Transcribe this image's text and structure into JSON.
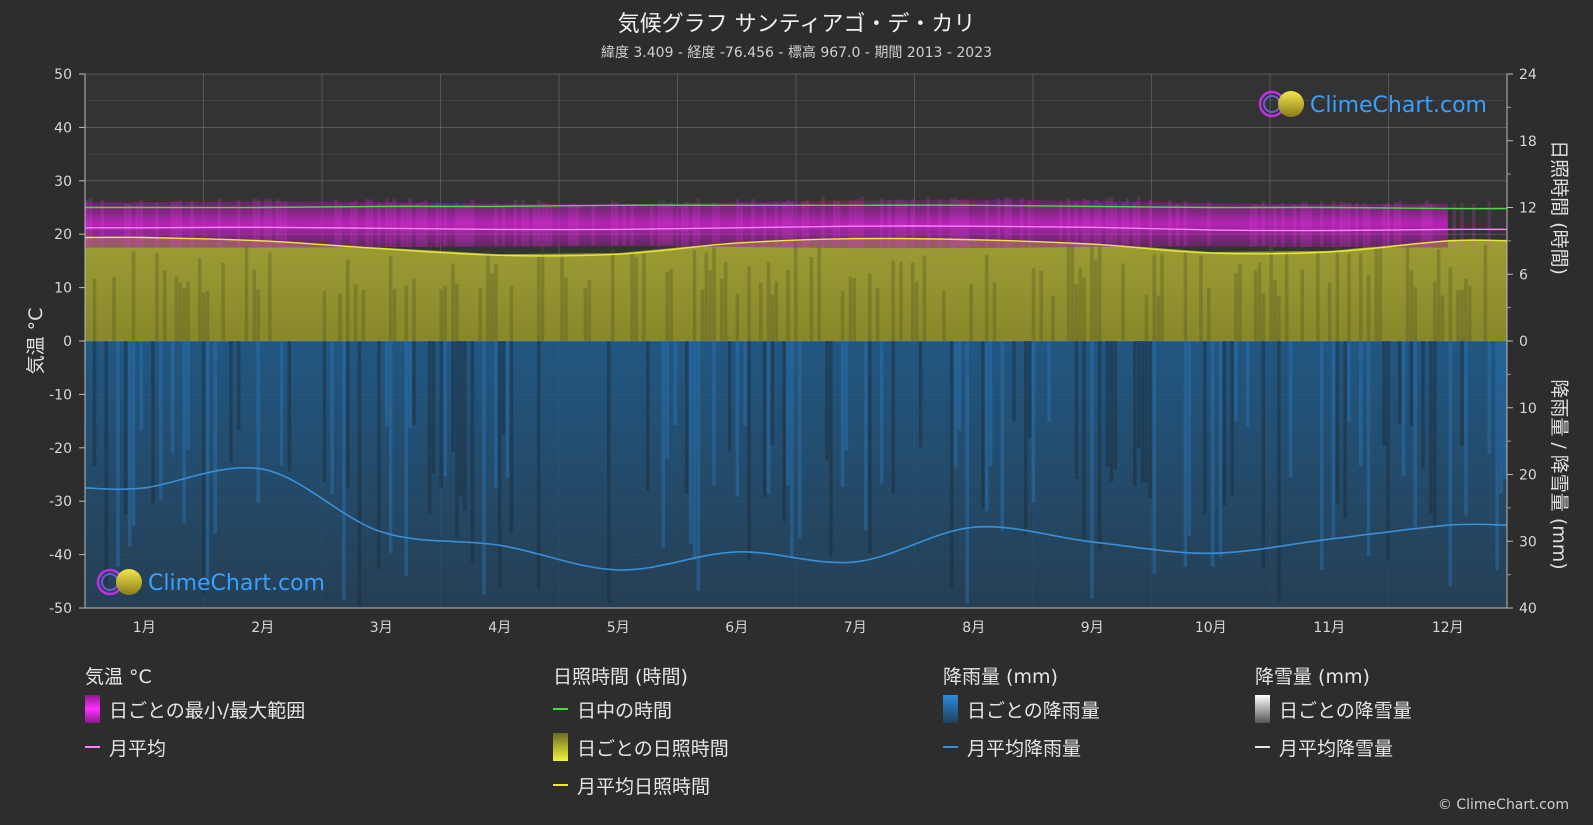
{
  "header": {
    "title": "気候グラフ サンティアゴ・デ・カリ",
    "subtitle": "緯度 3.409 - 経度 -76.456 - 標高 967.0 - 期間 2013 - 2023"
  },
  "watermark": "ClimeChart.com",
  "copyright": "© ClimeChart.com",
  "chart_data": {
    "type": "line",
    "categories": [
      "1月",
      "2月",
      "3月",
      "4月",
      "5月",
      "6月",
      "7月",
      "8月",
      "9月",
      "10月",
      "11月",
      "12月"
    ],
    "axes": {
      "left": {
        "label": "気温 °C",
        "range": [
          -50,
          50
        ],
        "ticks": [
          50,
          40,
          30,
          20,
          10,
          0,
          -10,
          -20,
          -30,
          -40,
          -50
        ]
      },
      "right_top": {
        "label": "日照時間 (時間)",
        "range": [
          0,
          24
        ],
        "ticks": [
          24,
          18,
          12,
          6,
          0
        ]
      },
      "right_bottom": {
        "label": "降雨量 / 降雪量 (mm)",
        "range": [
          0,
          40
        ],
        "ticks": [
          10,
          20,
          30,
          40
        ]
      }
    },
    "grid": true,
    "series": [
      {
        "name": "日中の時間",
        "axis": "right_top",
        "color": "#44dd44",
        "values": [
          12.0,
          12.0,
          12.1,
          12.1,
          12.2,
          12.2,
          12.2,
          12.2,
          12.1,
          12.0,
          12.0,
          11.9
        ]
      },
      {
        "name": "月平均日照時間",
        "axis": "right_top",
        "color": "#e8e838",
        "values": [
          9.3,
          9.0,
          8.3,
          7.7,
          7.8,
          8.8,
          9.2,
          9.1,
          8.7,
          7.9,
          8.0,
          9.0
        ]
      },
      {
        "name": "月平均",
        "axis": "left",
        "color": "#ff80ff",
        "values": [
          21.2,
          21.3,
          21.1,
          20.9,
          20.9,
          21.2,
          21.5,
          21.5,
          21.3,
          20.8,
          20.7,
          20.9
        ]
      },
      {
        "name": "月平均降雨量",
        "axis": "right_bottom",
        "color": "#3b8fd6",
        "values": [
          22.0,
          19.2,
          28.6,
          30.6,
          34.3,
          31.6,
          33.1,
          27.9,
          30.1,
          31.8,
          29.7,
          27.6
        ]
      },
      {
        "name": "日ごとの最小/最大範囲",
        "axis": "left",
        "color": "#d81ed8",
        "min": [
          17.5,
          17.5,
          17.6,
          17.7,
          17.8,
          17.6,
          17.4,
          17.4,
          17.6,
          17.7,
          17.6,
          17.5
        ],
        "max": [
          26.0,
          26.2,
          26.0,
          25.7,
          25.6,
          26.0,
          26.3,
          26.5,
          26.3,
          25.8,
          25.6,
          25.7
        ]
      },
      {
        "name": "日ごとの日照時間",
        "axis": "right_top",
        "color": "#9a9a2e"
      },
      {
        "name": "日ごとの降雨量",
        "axis": "right_bottom",
        "color": "#1f5f94"
      }
    ]
  },
  "legend": {
    "temperature": {
      "heading": "気温 °C",
      "items": [
        "日ごとの最小/最大範囲",
        "月平均"
      ]
    },
    "sunshine": {
      "heading": "日照時間 (時間)",
      "items": [
        "日中の時間",
        "日ごとの日照時間",
        "月平均日照時間"
      ]
    },
    "rain": {
      "heading": "降雨量 (mm)",
      "items": [
        "日ごとの降雨量",
        "月平均降雨量"
      ]
    },
    "snow": {
      "heading": "降雪量 (mm)",
      "items": [
        "日ごとの降雪量",
        "月平均降雪量"
      ]
    }
  }
}
